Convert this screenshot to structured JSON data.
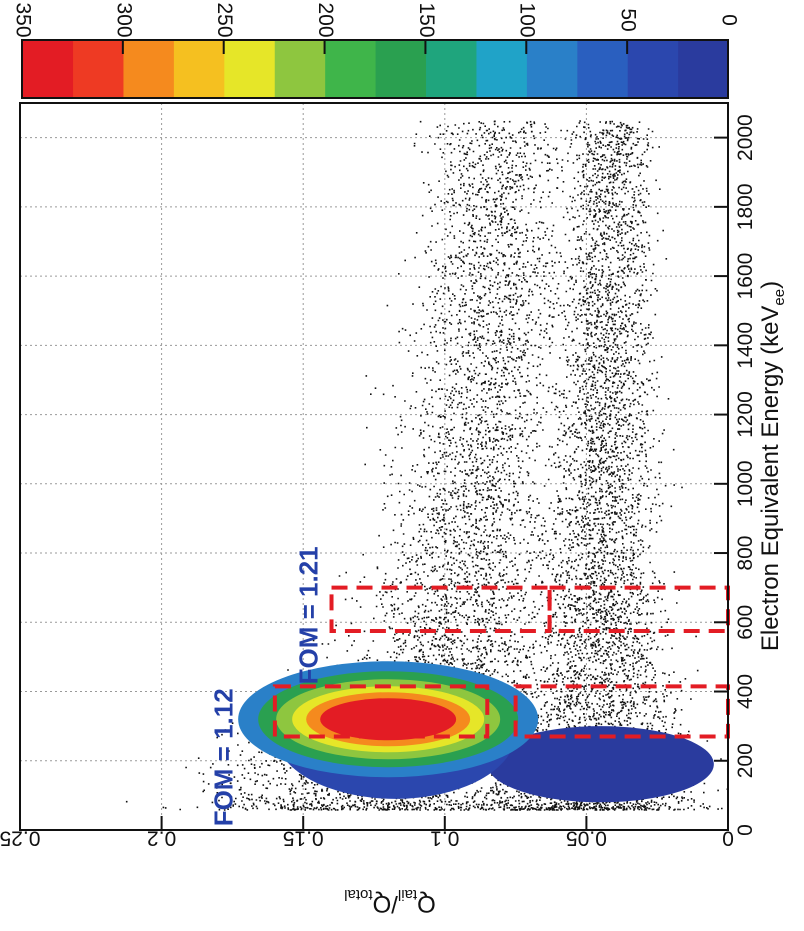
{
  "chart_data": {
    "type": "heatmap",
    "title": "",
    "orientation": "rotated-90-clockwise",
    "xlabel": "Electron Equivalent Energy (keV",
    "xlabel_sub": "ee",
    "xlabel_close": ")",
    "ylabel_main": "Q",
    "ylabel_sub1": "tail",
    "ylabel_sep": "/Q",
    "ylabel_sub2": "total",
    "xlim": [
      0,
      2100
    ],
    "ylim": [
      0,
      0.25
    ],
    "x_ticks": [
      {
        "value": 0,
        "label": "0"
      },
      {
        "value": 200,
        "label": "200"
      },
      {
        "value": 400,
        "label": "400"
      },
      {
        "value": 600,
        "label": "600"
      },
      {
        "value": 800,
        "label": "800"
      },
      {
        "value": 1000,
        "label": "1000"
      },
      {
        "value": 1200,
        "label": "1200"
      },
      {
        "value": 1400,
        "label": "1400"
      },
      {
        "value": 1600,
        "label": "1600"
      },
      {
        "value": 1800,
        "label": "1800"
      },
      {
        "value": 2000,
        "label": "2000"
      }
    ],
    "y_ticks": [
      {
        "value": 0,
        "label": "0"
      },
      {
        "value": 0.05,
        "label": "0.05"
      },
      {
        "value": 0.1,
        "label": "0.1"
      },
      {
        "value": 0.15,
        "label": "0.15"
      },
      {
        "value": 0.2,
        "label": "0.2"
      },
      {
        "value": 0.25,
        "label": "0.25"
      }
    ],
    "grid": true,
    "colorbar": {
      "range": [
        0,
        350
      ],
      "ticks": [
        {
          "value": 0,
          "label": "0"
        },
        {
          "value": 50,
          "label": "50"
        },
        {
          "value": 100,
          "label": "100"
        },
        {
          "value": 150,
          "label": "150"
        },
        {
          "value": 200,
          "label": "200"
        },
        {
          "value": 250,
          "label": "250"
        },
        {
          "value": 300,
          "label": "300"
        },
        {
          "value": 350,
          "label": "350"
        }
      ],
      "colors": [
        "#2a3b9e",
        "#2b47ae",
        "#2a5fbf",
        "#2a80c8",
        "#20a3c8",
        "#1fa57d",
        "#2aa050",
        "#3fb54a",
        "#8ec63f",
        "#e6e628",
        "#f5c020",
        "#f58a1e",
        "#ee3a23",
        "#e31c24"
      ]
    },
    "bands": [
      {
        "name": "upper band",
        "peak_energy": 320,
        "peak_y": 0.12,
        "width_profile": [
          [
            80,
            0.06
          ],
          [
            250,
            0.05
          ],
          [
            450,
            0.035
          ],
          [
            800,
            0.03
          ],
          [
            1400,
            0.027
          ],
          [
            2000,
            0.025
          ]
        ],
        "center_profile": [
          [
            80,
            0.125
          ],
          [
            300,
            0.12
          ],
          [
            500,
            0.1
          ],
          [
            800,
            0.092
          ],
          [
            1400,
            0.085
          ],
          [
            2000,
            0.082
          ]
        ]
      },
      {
        "name": "lower band",
        "peak_energy": 120,
        "peak_y": 0.04,
        "width_profile": [
          [
            80,
            0.04
          ],
          [
            300,
            0.03
          ],
          [
            600,
            0.02
          ],
          [
            1400,
            0.016
          ],
          [
            2000,
            0.015
          ]
        ],
        "center_profile": [
          [
            80,
            0.05
          ],
          [
            300,
            0.048
          ],
          [
            600,
            0.045
          ],
          [
            1400,
            0.043
          ],
          [
            2000,
            0.042
          ]
        ]
      }
    ],
    "annotations": [
      {
        "text": "FOM = 1.12",
        "color": "#2440a8",
        "x": 210,
        "y": 0.175
      },
      {
        "text": "FOM = 1.21",
        "color": "#2440a8",
        "x": 620,
        "y": 0.145
      }
    ],
    "regions": [
      {
        "label": "region 1 upper",
        "x_range": [
          270,
          415
        ],
        "y_range": [
          0.085,
          0.16
        ]
      },
      {
        "label": "region 1 lower",
        "x_range": [
          270,
          415
        ],
        "y_range": [
          0.0,
          0.075
        ]
      },
      {
        "label": "region 2 upper",
        "x_range": [
          575,
          700
        ],
        "y_range": [
          0.063,
          0.14
        ]
      },
      {
        "label": "region 2 lower",
        "x_range": [
          575,
          700
        ],
        "y_range": [
          0.0,
          0.063
        ]
      }
    ]
  }
}
